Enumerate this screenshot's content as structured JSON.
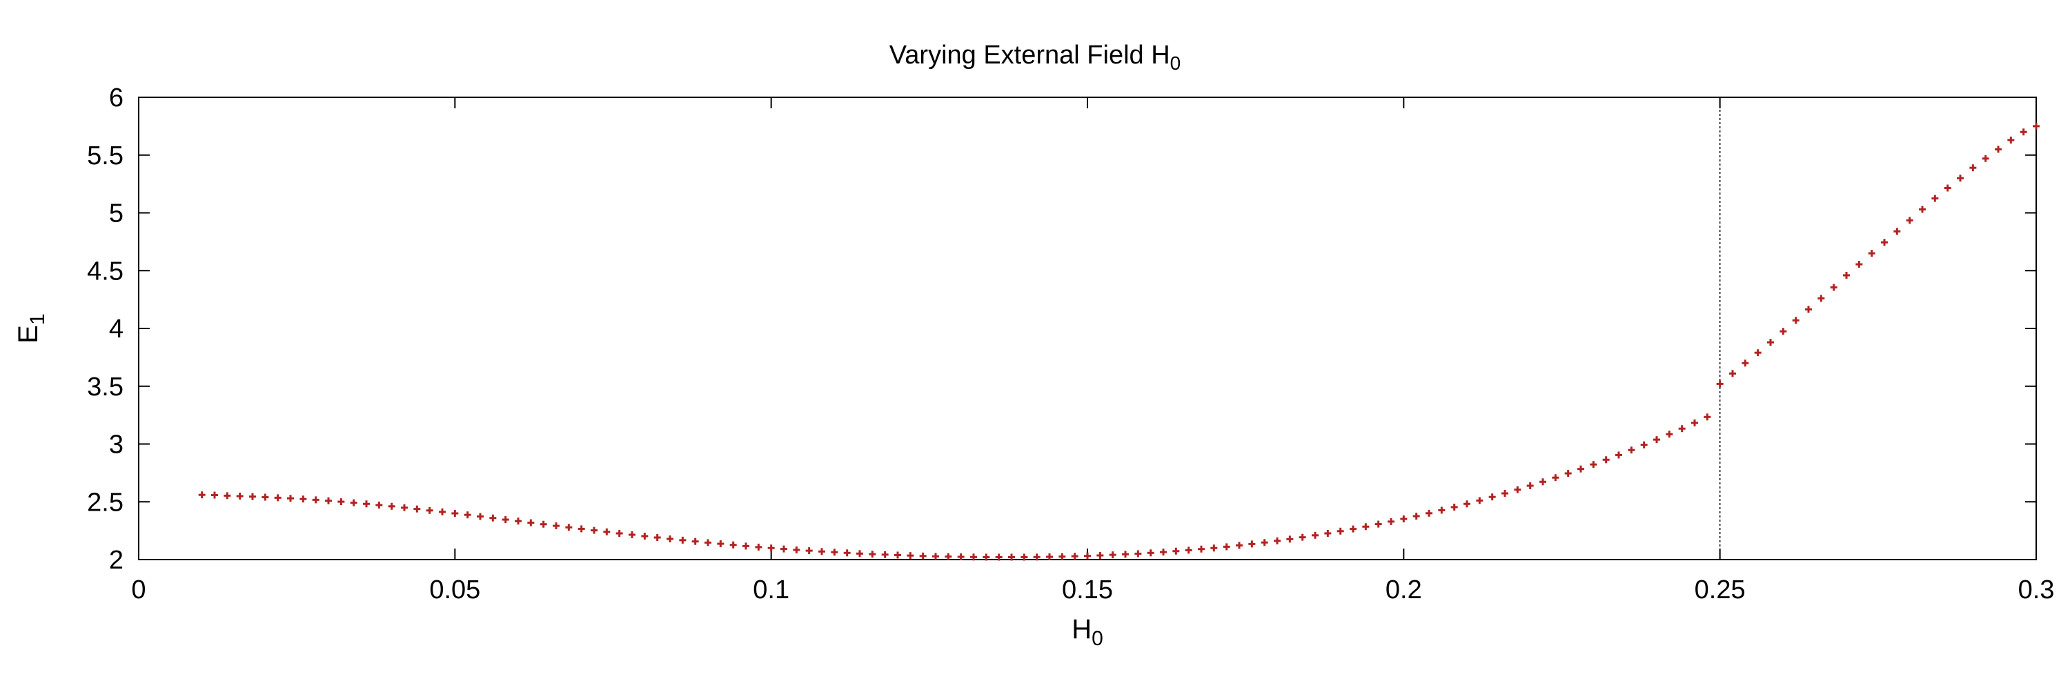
{
  "chart_data": {
    "type": "scatter",
    "title": "Varying External Field H",
    "title_sub": "0",
    "xlabel": "H",
    "xlabel_sub": "0",
    "ylabel": "E",
    "ylabel_sub": "1",
    "xlim": [
      0,
      0.3
    ],
    "ylim": [
      2,
      6
    ],
    "xticks": [
      0,
      0.05,
      0.1,
      0.15,
      0.2,
      0.25,
      0.3
    ],
    "xtick_labels": [
      "0",
      "0.05",
      "0.1",
      "0.15",
      "0.2",
      "0.25",
      "0.3"
    ],
    "yticks": [
      2,
      2.5,
      3,
      3.5,
      4,
      4.5,
      5,
      5.5,
      6
    ],
    "ytick_labels": [
      "2",
      "2.5",
      "3",
      "3.5",
      "4",
      "4.5",
      "5",
      "5.5",
      "6"
    ],
    "grid": false,
    "marker_type": "plus",
    "marker_color": "#b22222",
    "vertical_line_x": 0.25,
    "series": [
      {
        "x": [
          0.01,
          0.012,
          0.014,
          0.016,
          0.018,
          0.02,
          0.022,
          0.024,
          0.026,
          0.028,
          0.03,
          0.032,
          0.034,
          0.036,
          0.038,
          0.04,
          0.042,
          0.044,
          0.046,
          0.048,
          0.05,
          0.052,
          0.054,
          0.056,
          0.058,
          0.06,
          0.062,
          0.064,
          0.066,
          0.068,
          0.07,
          0.072,
          0.074,
          0.076,
          0.078,
          0.08,
          0.082,
          0.084,
          0.086,
          0.088,
          0.09,
          0.092,
          0.094,
          0.096,
          0.098,
          0.1,
          0.102,
          0.104,
          0.106,
          0.108,
          0.11,
          0.112,
          0.114,
          0.116,
          0.118,
          0.12,
          0.122,
          0.124,
          0.126,
          0.128,
          0.13,
          0.132,
          0.134,
          0.136,
          0.138,
          0.14,
          0.142,
          0.144,
          0.146,
          0.148,
          0.15,
          0.152,
          0.154,
          0.156,
          0.158,
          0.16,
          0.162,
          0.164,
          0.166,
          0.168,
          0.17,
          0.172,
          0.174,
          0.176,
          0.178,
          0.18,
          0.182,
          0.184,
          0.186,
          0.188,
          0.19,
          0.192,
          0.194,
          0.196,
          0.198,
          0.2,
          0.202,
          0.204,
          0.206,
          0.208,
          0.21,
          0.212,
          0.214,
          0.216,
          0.218,
          0.22,
          0.222,
          0.224,
          0.226,
          0.228,
          0.23,
          0.232,
          0.234,
          0.236,
          0.238,
          0.24,
          0.242,
          0.244,
          0.246,
          0.248,
          0.25,
          0.252,
          0.254,
          0.256,
          0.258,
          0.26,
          0.262,
          0.264,
          0.266,
          0.268,
          0.27,
          0.272,
          0.274,
          0.276,
          0.278,
          0.28,
          0.282,
          0.284,
          0.286,
          0.288,
          0.29,
          0.292,
          0.294,
          0.296,
          0.298,
          0.3
        ],
        "y": [
          2.56,
          2.558,
          2.553,
          2.549,
          2.545,
          2.54,
          2.535,
          2.53,
          2.524,
          2.517,
          2.509,
          2.501,
          2.492,
          2.482,
          2.472,
          2.461,
          2.449,
          2.438,
          2.425,
          2.413,
          2.4,
          2.387,
          2.373,
          2.36,
          2.346,
          2.333,
          2.319,
          2.306,
          2.292,
          2.279,
          2.266,
          2.253,
          2.24,
          2.227,
          2.215,
          2.203,
          2.191,
          2.179,
          2.168,
          2.157,
          2.147,
          2.137,
          2.127,
          2.117,
          2.108,
          2.1,
          2.092,
          2.084,
          2.077,
          2.07,
          2.064,
          2.058,
          2.052,
          2.047,
          2.043,
          2.039,
          2.035,
          2.031,
          2.028,
          2.026,
          2.024,
          2.022,
          2.021,
          2.021,
          2.021,
          2.021,
          2.022,
          2.024,
          2.026,
          2.029,
          2.032,
          2.036,
          2.041,
          2.046,
          2.051,
          2.058,
          2.065,
          2.073,
          2.081,
          2.091,
          2.1,
          2.111,
          2.123,
          2.135,
          2.148,
          2.162,
          2.177,
          2.193,
          2.21,
          2.227,
          2.246,
          2.265,
          2.285,
          2.307,
          2.329,
          2.352,
          2.376,
          2.401,
          2.427,
          2.454,
          2.482,
          2.511,
          2.542,
          2.573,
          2.605,
          2.639,
          2.673,
          2.709,
          2.746,
          2.784,
          2.823,
          2.864,
          2.905,
          2.948,
          2.993,
          3.038,
          3.085,
          3.133,
          3.183,
          3.234,
          3.52,
          3.61,
          3.7,
          3.79,
          3.88,
          3.975,
          4.07,
          4.165,
          4.26,
          4.355,
          4.46,
          4.555,
          4.65,
          4.745,
          4.84,
          4.935,
          5.03,
          5.125,
          5.215,
          5.3,
          5.39,
          5.47,
          5.55,
          5.63,
          5.7,
          5.75
        ]
      }
    ]
  }
}
